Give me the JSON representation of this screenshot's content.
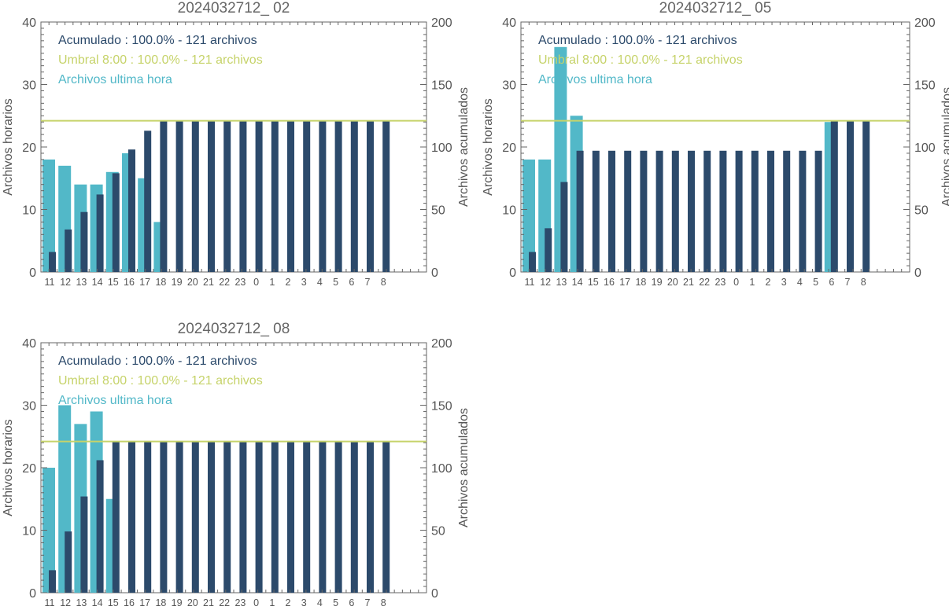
{
  "colors": {
    "hourly": "#52b8c8",
    "cumulative": "#2c4a6b",
    "threshold": "#c6d36a",
    "axis": "#666666",
    "text": "#555555"
  },
  "chart_data": [
    {
      "type": "bar",
      "title": "2024032712_ 02",
      "ylabel_left": "Archivos horarios",
      "ylabel_right": "Archivos acumulados",
      "ylim_left": [
        0,
        40
      ],
      "ylim_right": [
        0,
        200
      ],
      "yticks_left": [
        "0",
        "10",
        "20",
        "30",
        "40"
      ],
      "yticks_right": [
        "0",
        "50",
        "100",
        "150",
        "200"
      ],
      "categories": [
        "11",
        "12",
        "13",
        "14",
        "15",
        "16",
        "17",
        "18",
        "19",
        "20",
        "21",
        "22",
        "23",
        "0",
        "1",
        "2",
        "3",
        "4",
        "5",
        "6",
        "7",
        "8"
      ],
      "legend": [
        {
          "text": "Acumulado : 100.0% - 121 archivos",
          "color": "#2c4a6b"
        },
        {
          "text": "Umbral 8:00 : 100.0% - 121 archivos",
          "color": "#c6d36a"
        },
        {
          "text": "Archivos ultima hora",
          "color": "#52b8c8"
        }
      ],
      "series": [
        {
          "name": "Archivos ultima hora",
          "axis": "left",
          "values": [
            18,
            17,
            14,
            14,
            16,
            19,
            15,
            8,
            null,
            null,
            null,
            null,
            null,
            null,
            null,
            null,
            null,
            null,
            null,
            null,
            null,
            null
          ]
        },
        {
          "name": "Acumulado",
          "axis": "right",
          "values": [
            16,
            34,
            48,
            62,
            79,
            98,
            113,
            121,
            121,
            121,
            121,
            121,
            121,
            121,
            121,
            121,
            121,
            121,
            121,
            121,
            121,
            121
          ]
        }
      ],
      "threshold": 121
    },
    {
      "type": "bar",
      "title": "2024032712_ 05",
      "ylabel_left": "Archivos horarios",
      "ylabel_right": "Archivos acumulados",
      "ylim_left": [
        0,
        40
      ],
      "ylim_right": [
        0,
        200
      ],
      "yticks_left": [
        "0",
        "10",
        "20",
        "30",
        "40"
      ],
      "yticks_right": [
        "0",
        "50",
        "100",
        "150",
        "200"
      ],
      "categories": [
        "11",
        "12",
        "13",
        "14",
        "15",
        "16",
        "17",
        "18",
        "19",
        "20",
        "21",
        "22",
        "23",
        "0",
        "1",
        "2",
        "3",
        "4",
        "5",
        "6",
        "7",
        "8"
      ],
      "legend": [
        {
          "text": "Acumulado : 100.0% - 121 archivos",
          "color": "#2c4a6b"
        },
        {
          "text": "Umbral 8:00 : 100.0% - 121 archivos",
          "color": "#c6d36a"
        },
        {
          "text": "Archivos ultima hora",
          "color": "#52b8c8"
        }
      ],
      "series": [
        {
          "name": "Archivos ultima hora",
          "axis": "left",
          "values": [
            18,
            18,
            36,
            25,
            null,
            null,
            null,
            null,
            null,
            null,
            null,
            null,
            null,
            null,
            null,
            null,
            null,
            null,
            null,
            24,
            null,
            null
          ]
        },
        {
          "name": "Acumulado",
          "axis": "right",
          "values": [
            16,
            35,
            72,
            97,
            97,
            97,
            97,
            97,
            97,
            97,
            97,
            97,
            97,
            97,
            97,
            97,
            97,
            97,
            97,
            121,
            121,
            121
          ]
        }
      ],
      "threshold": 121
    },
    {
      "type": "bar",
      "title": "2024032712_ 08",
      "ylabel_left": "Archivos horarios",
      "ylabel_right": "Archivos acumulados",
      "ylim_left": [
        0,
        40
      ],
      "ylim_right": [
        0,
        200
      ],
      "yticks_left": [
        "0",
        "10",
        "20",
        "30",
        "40"
      ],
      "yticks_right": [
        "0",
        "50",
        "100",
        "150",
        "200"
      ],
      "categories": [
        "11",
        "12",
        "13",
        "14",
        "15",
        "16",
        "17",
        "18",
        "19",
        "20",
        "21",
        "22",
        "23",
        "0",
        "1",
        "2",
        "3",
        "4",
        "5",
        "6",
        "7",
        "8"
      ],
      "legend": [
        {
          "text": "Acumulado : 100.0% - 121 archivos",
          "color": "#2c4a6b"
        },
        {
          "text": "Umbral 8:00 : 100.0% - 121 archivos",
          "color": "#c6d36a"
        },
        {
          "text": "Archivos ultima hora",
          "color": "#52b8c8"
        }
      ],
      "series": [
        {
          "name": "Archivos ultima hora",
          "axis": "left",
          "values": [
            20,
            30,
            27,
            29,
            15,
            null,
            null,
            null,
            null,
            null,
            null,
            null,
            null,
            null,
            null,
            null,
            null,
            null,
            null,
            null,
            null,
            null
          ]
        },
        {
          "name": "Acumulado",
          "axis": "right",
          "values": [
            18,
            49,
            77,
            106,
            121,
            121,
            121,
            121,
            121,
            121,
            121,
            121,
            121,
            121,
            121,
            121,
            121,
            121,
            121,
            121,
            121,
            121
          ]
        }
      ],
      "threshold": 121
    }
  ]
}
